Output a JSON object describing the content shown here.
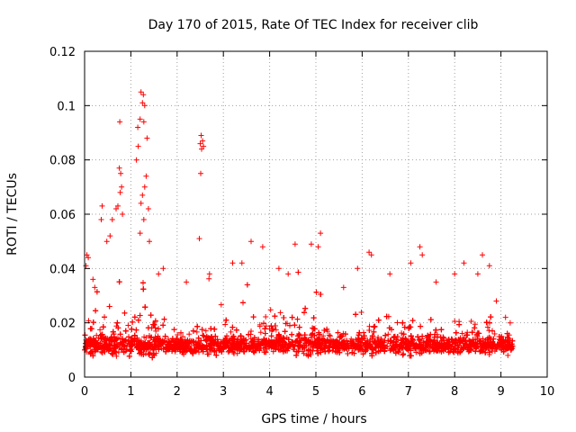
{
  "chart_data": {
    "type": "scatter",
    "title": "Day 170 of 2015, Rate Of TEC Index for receiver clib",
    "xlabel": "GPS time / hours",
    "ylabel": "ROTI / TECUs",
    "xlim": [
      0,
      10
    ],
    "ylim": [
      0,
      0.12
    ],
    "xticks": [
      "0",
      "1",
      "2",
      "3",
      "4",
      "5",
      "6",
      "7",
      "8",
      "9",
      "10"
    ],
    "yticks": [
      "0",
      "0.02",
      "0.04",
      "0.06",
      "0.08",
      "0.1",
      "0.12"
    ],
    "grid": true,
    "marker": "plus",
    "color": "#ff0000",
    "notable_points": [
      {
        "x": 1.22,
        "y": 0.105
      },
      {
        "x": 1.27,
        "y": 0.104
      },
      {
        "x": 1.25,
        "y": 0.101
      },
      {
        "x": 1.3,
        "y": 0.1
      },
      {
        "x": 1.2,
        "y": 0.095
      },
      {
        "x": 1.28,
        "y": 0.094
      },
      {
        "x": 0.76,
        "y": 0.094
      },
      {
        "x": 1.15,
        "y": 0.092
      },
      {
        "x": 1.35,
        "y": 0.088
      },
      {
        "x": 1.16,
        "y": 0.085
      },
      {
        "x": 1.12,
        "y": 0.08
      },
      {
        "x": 1.33,
        "y": 0.074
      },
      {
        "x": 1.3,
        "y": 0.07
      },
      {
        "x": 1.25,
        "y": 0.067
      },
      {
        "x": 1.22,
        "y": 0.064
      },
      {
        "x": 1.38,
        "y": 0.062
      },
      {
        "x": 1.28,
        "y": 0.058
      },
      {
        "x": 1.2,
        "y": 0.053
      },
      {
        "x": 1.4,
        "y": 0.05
      },
      {
        "x": 0.75,
        "y": 0.077
      },
      {
        "x": 0.78,
        "y": 0.075
      },
      {
        "x": 0.8,
        "y": 0.07
      },
      {
        "x": 0.77,
        "y": 0.068
      },
      {
        "x": 0.72,
        "y": 0.063
      },
      {
        "x": 0.68,
        "y": 0.062
      },
      {
        "x": 0.82,
        "y": 0.06
      },
      {
        "x": 0.6,
        "y": 0.058
      },
      {
        "x": 0.38,
        "y": 0.063
      },
      {
        "x": 0.36,
        "y": 0.058
      },
      {
        "x": 0.55,
        "y": 0.052
      },
      {
        "x": 0.48,
        "y": 0.05
      },
      {
        "x": 0.05,
        "y": 0.045
      },
      {
        "x": 0.08,
        "y": 0.044
      },
      {
        "x": 0.03,
        "y": 0.041
      },
      {
        "x": 2.52,
        "y": 0.089
      },
      {
        "x": 2.55,
        "y": 0.087
      },
      {
        "x": 2.5,
        "y": 0.086
      },
      {
        "x": 2.57,
        "y": 0.085
      },
      {
        "x": 2.53,
        "y": 0.084
      },
      {
        "x": 2.51,
        "y": 0.075
      },
      {
        "x": 2.48,
        "y": 0.051
      },
      {
        "x": 3.6,
        "y": 0.05
      },
      {
        "x": 3.85,
        "y": 0.048
      },
      {
        "x": 4.55,
        "y": 0.049
      },
      {
        "x": 4.9,
        "y": 0.049
      },
      {
        "x": 5.1,
        "y": 0.053
      },
      {
        "x": 5.05,
        "y": 0.048
      },
      {
        "x": 6.15,
        "y": 0.046
      },
      {
        "x": 6.2,
        "y": 0.045
      },
      {
        "x": 7.25,
        "y": 0.048
      },
      {
        "x": 7.3,
        "y": 0.045
      },
      {
        "x": 8.6,
        "y": 0.045
      },
      {
        "x": 8.75,
        "y": 0.041
      },
      {
        "x": 8.2,
        "y": 0.042
      },
      {
        "x": 0.18,
        "y": 0.036
      },
      {
        "x": 0.22,
        "y": 0.033
      },
      {
        "x": 1.7,
        "y": 0.04
      },
      {
        "x": 1.6,
        "y": 0.038
      },
      {
        "x": 2.2,
        "y": 0.035
      },
      {
        "x": 2.7,
        "y": 0.038
      },
      {
        "x": 3.2,
        "y": 0.042
      },
      {
        "x": 3.4,
        "y": 0.042
      },
      {
        "x": 4.2,
        "y": 0.04
      },
      {
        "x": 4.4,
        "y": 0.038
      },
      {
        "x": 5.6,
        "y": 0.033
      },
      {
        "x": 5.9,
        "y": 0.04
      },
      {
        "x": 6.6,
        "y": 0.038
      },
      {
        "x": 7.05,
        "y": 0.042
      },
      {
        "x": 7.6,
        "y": 0.035
      },
      {
        "x": 8.0,
        "y": 0.038
      },
      {
        "x": 8.5,
        "y": 0.038
      },
      {
        "x": 8.9,
        "y": 0.028
      },
      {
        "x": 9.1,
        "y": 0.022
      },
      {
        "x": 9.2,
        "y": 0.02
      },
      {
        "x": 9.15,
        "y": 0.008
      }
    ],
    "bulk_summary": {
      "description": "dense cloud of points spanning 0 to 9.25 hours",
      "x_range": [
        0,
        9.25
      ],
      "typical_band": [
        0.005,
        0.022
      ],
      "floor": 0.003
    }
  }
}
